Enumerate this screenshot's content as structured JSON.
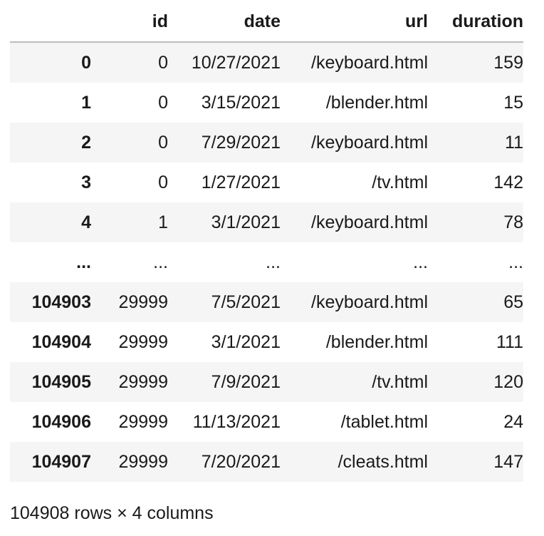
{
  "table": {
    "columns": [
      "id",
      "date",
      "url",
      "duration"
    ],
    "rows": [
      {
        "index": "0",
        "id": "0",
        "date": "10/27/2021",
        "url": "/keyboard.html",
        "duration": "159"
      },
      {
        "index": "1",
        "id": "0",
        "date": "3/15/2021",
        "url": "/blender.html",
        "duration": "15"
      },
      {
        "index": "2",
        "id": "0",
        "date": "7/29/2021",
        "url": "/keyboard.html",
        "duration": "11"
      },
      {
        "index": "3",
        "id": "0",
        "date": "1/27/2021",
        "url": "/tv.html",
        "duration": "142"
      },
      {
        "index": "4",
        "id": "1",
        "date": "3/1/2021",
        "url": "/keyboard.html",
        "duration": "78"
      },
      {
        "index": "...",
        "id": "...",
        "date": "...",
        "url": "...",
        "duration": "..."
      },
      {
        "index": "104903",
        "id": "29999",
        "date": "7/5/2021",
        "url": "/keyboard.html",
        "duration": "65"
      },
      {
        "index": "104904",
        "id": "29999",
        "date": "3/1/2021",
        "url": "/blender.html",
        "duration": "111"
      },
      {
        "index": "104905",
        "id": "29999",
        "date": "7/9/2021",
        "url": "/tv.html",
        "duration": "120"
      },
      {
        "index": "104906",
        "id": "29999",
        "date": "11/13/2021",
        "url": "/tablet.html",
        "duration": "24"
      },
      {
        "index": "104907",
        "id": "29999",
        "date": "7/20/2021",
        "url": "/cleats.html",
        "duration": "147"
      }
    ]
  },
  "caption": "104908 rows × 4 columns"
}
